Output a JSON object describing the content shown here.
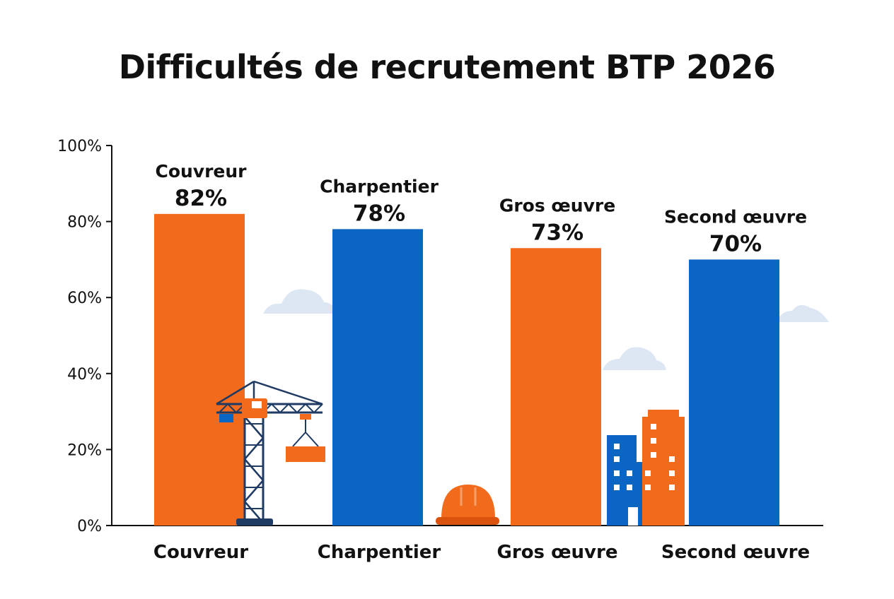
{
  "chart_data": {
    "type": "bar",
    "title": "Difficultés de recrutement BTP 2026",
    "categories": [
      "Couvreur",
      "Charpentier",
      "Gros œuvre",
      "Second œuvre"
    ],
    "values": [
      82,
      78,
      73,
      70
    ],
    "value_labels": [
      "82%",
      "78%",
      "73%",
      "70%"
    ],
    "ylim": [
      0,
      100
    ],
    "yticks": [
      0,
      20,
      40,
      60,
      80,
      100
    ],
    "ytick_labels": [
      "0%",
      "20%",
      "40%",
      "60%",
      "80%",
      "100%"
    ],
    "bar_colors": [
      "#f26a1b",
      "#0a66c2",
      "#f26a1b",
      "#0a66c2"
    ],
    "grid": false,
    "legend": "none"
  },
  "decorations": {
    "icons": [
      "cloud-icon",
      "tower-crane-icon",
      "hard-hat-icon",
      "buildings-icon"
    ],
    "accent_orange": "#f26a1b",
    "accent_blue": "#0a66c2",
    "navy": "#1f3b64",
    "cloud_color": "#dde7f3"
  }
}
